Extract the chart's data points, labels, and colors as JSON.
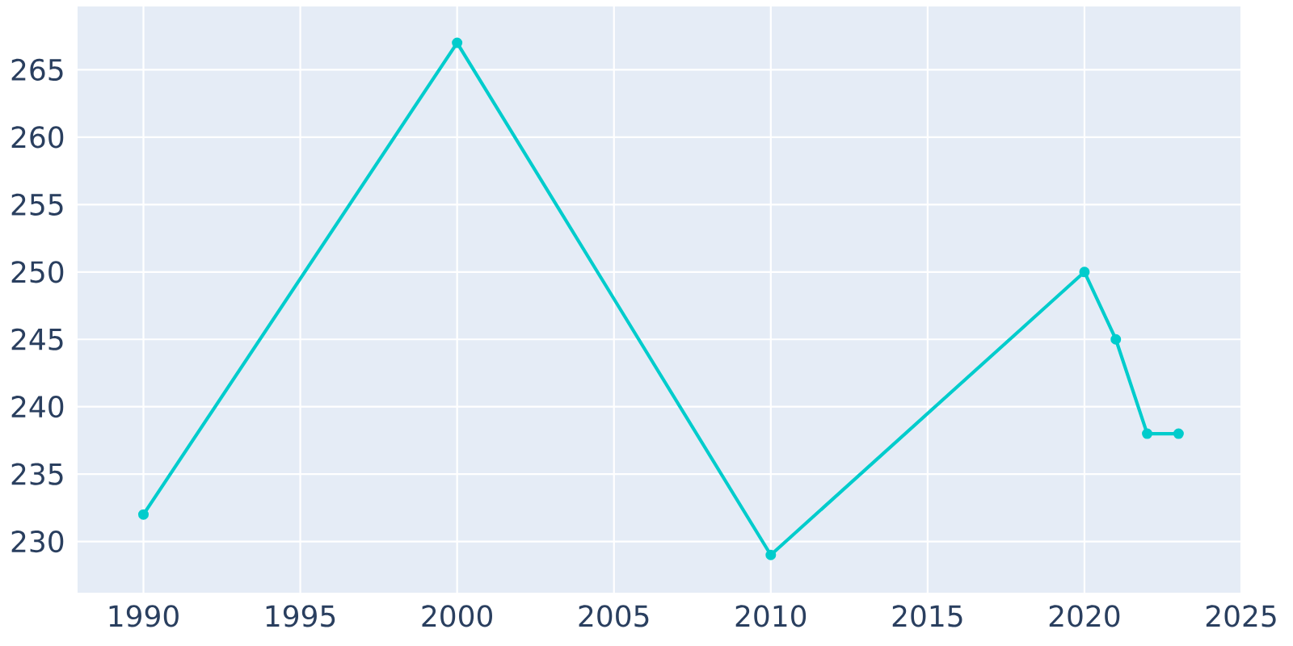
{
  "chart_data": {
    "type": "line",
    "x": [
      1990,
      2000,
      2010,
      2020,
      2021,
      2022,
      2023
    ],
    "series": [
      {
        "color": "#00cccc",
        "values": [
          232,
          267,
          229,
          250,
          245,
          238,
          238
        ]
      }
    ],
    "xlim": [
      1987.9,
      2025
    ],
    "ylim": [
      226.2,
      269.7
    ],
    "xticks": [
      1990,
      1995,
      2000,
      2005,
      2010,
      2015,
      2020,
      2025
    ],
    "yticks": [
      230,
      235,
      240,
      245,
      250,
      255,
      260,
      265
    ],
    "grid": true,
    "marker": "circle",
    "line_style": "solid"
  }
}
